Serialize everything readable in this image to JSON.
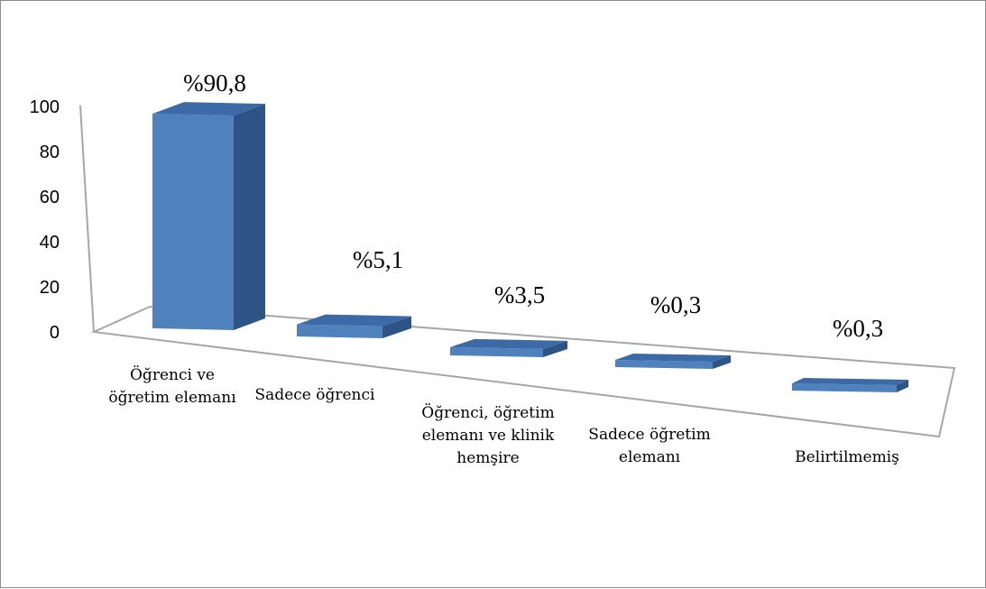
{
  "chart_data": {
    "type": "bar",
    "title": "",
    "xlabel": "",
    "ylabel": "",
    "ylim": [
      0,
      100
    ],
    "yticks": [
      0,
      20,
      40,
      60,
      80,
      100
    ],
    "categories": [
      [
        "Öğrenci  ve",
        "öğretim elemanı"
      ],
      [
        "Sadece öğrenci"
      ],
      [
        "Öğrenci, öğretim",
        "elemanı ve klinik",
        "hemşire"
      ],
      [
        "Sadece öğretim",
        "elemanı"
      ],
      [
        "Belirtilmemiş"
      ]
    ],
    "values": [
      90.8,
      5.1,
      3.5,
      0.3,
      0.3
    ],
    "data_labels": [
      "%90,8",
      "%5,1",
      "%3,5",
      "%0,3",
      "%0,3"
    ],
    "colors": {
      "front": "#4f81bd",
      "top": "#3b6aa6",
      "side": "#2e5486",
      "axis": "#a6a6a6"
    }
  }
}
